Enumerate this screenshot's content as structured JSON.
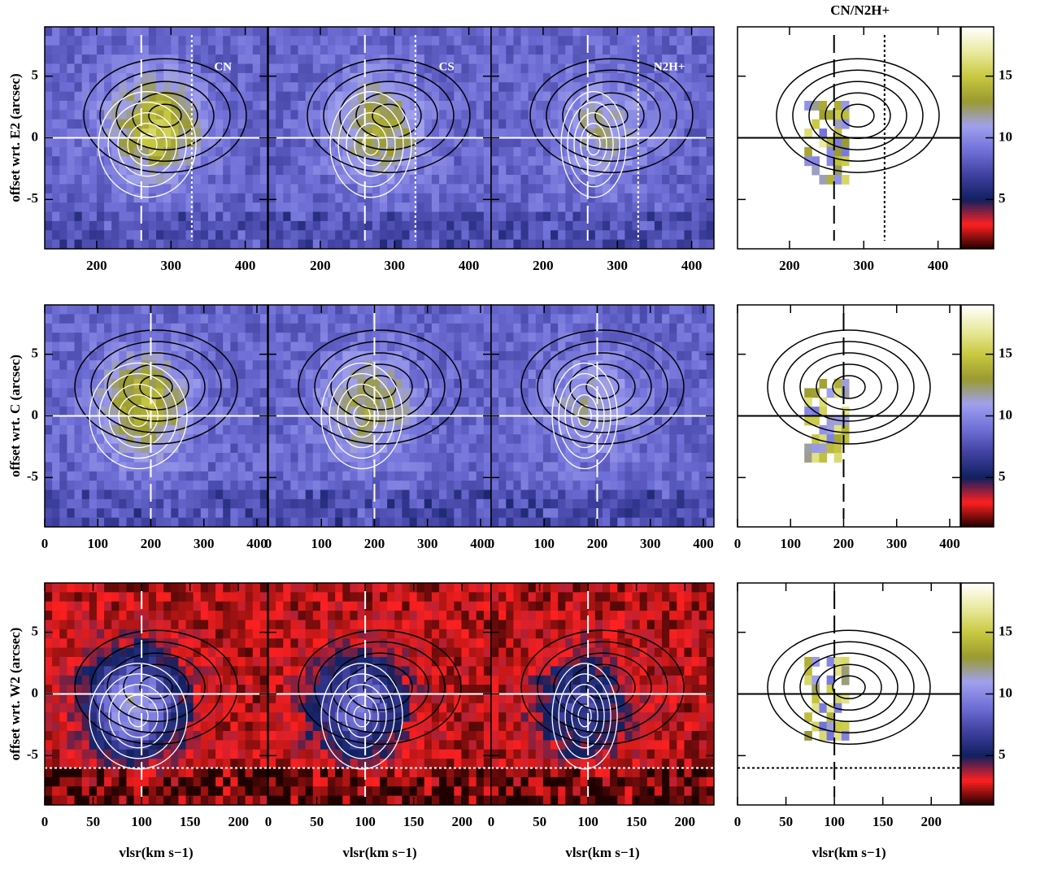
{
  "chart_data": [
    {
      "type": "heatmap",
      "ylabel": "offset wrt. E2 (arcsec)",
      "ratio_title": "CN/N2H+",
      "panel_labels": [
        "CN",
        "CS",
        "N2H+"
      ],
      "xlim": [
        130,
        430
      ],
      "xticks": [
        200,
        300,
        400
      ],
      "ylim": [
        -9,
        9
      ],
      "yticks": [
        -5,
        0,
        5
      ],
      "ref_x": [
        260,
        328
      ],
      "ref_y": [
        0
      ],
      "colorbar": {
        "lim": [
          1,
          19
        ],
        "ticks": [
          5,
          10,
          15
        ],
        "colors": [
          "#200000",
          "#ff2020",
          "#102060",
          "#4040a0",
          "#7070d8",
          "#a0a0ee",
          "#9a9a30",
          "#c8c840",
          "#eaeaa0",
          "#ffffff"
        ]
      }
    },
    {
      "type": "heatmap",
      "ylabel": "offset wrt. C (arcsec)",
      "xlim": [
        0,
        420
      ],
      "xticks": [
        0,
        100,
        200,
        300,
        400
      ],
      "ylim": [
        -9,
        9
      ],
      "yticks": [
        -5,
        0,
        5
      ],
      "ref_x": [
        200
      ],
      "ref_y": [
        0
      ],
      "colorbar": {
        "lim": [
          1,
          19
        ],
        "ticks": [
          5,
          10,
          15
        ],
        "colors": [
          "#200000",
          "#ff2020",
          "#102060",
          "#4040a0",
          "#7070d8",
          "#a0a0ee",
          "#9a9a30",
          "#c8c840",
          "#eaeaa0",
          "#ffffff"
        ]
      }
    },
    {
      "type": "heatmap",
      "ylabel": "offset wrt. W2 (arcsec)",
      "xlabel": "vlsr(km s−1)",
      "xlim": [
        0,
        230
      ],
      "xticks": [
        0,
        50,
        100,
        150,
        200
      ],
      "ylim": [
        -9,
        9
      ],
      "yticks": [
        -5,
        0,
        5
      ],
      "ref_x": [
        100
      ],
      "ref_y": [
        0,
        -6
      ],
      "colorbar": {
        "lim": [
          1,
          19
        ],
        "ticks": [
          5,
          10,
          15
        ],
        "colors": [
          "#200000",
          "#ff2020",
          "#102060",
          "#4040a0",
          "#7070d8",
          "#a0a0ee",
          "#9a9a30",
          "#c8c840",
          "#eaeaa0",
          "#ffffff"
        ]
      }
    }
  ]
}
